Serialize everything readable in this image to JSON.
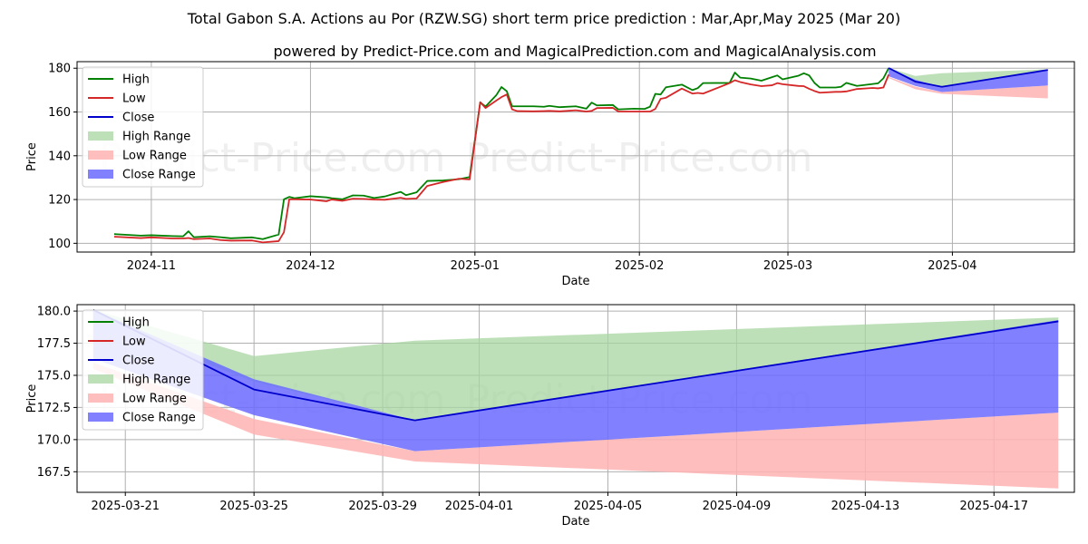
{
  "titles": {
    "main": "Total Gabon S.A. Actions au Por (RZW.SG) short term price prediction : Mar,Apr,May 2025 (Mar 20)",
    "sub": "powered by Predict-Price.com and MagicalPrediction.com and MagicalAnalysis.com"
  },
  "watermark": "Predict-Price.com",
  "colors": {
    "high": "#008000",
    "low": "#d62728",
    "close": "#0000cc",
    "high_range": "#a8d5a2",
    "low_range": "#ffb3b3",
    "close_range": "#6b6bff"
  },
  "legend": [
    "High",
    "Low",
    "Close",
    "High Range",
    "Low Range",
    "Close Range"
  ],
  "chart_data": [
    {
      "type": "line",
      "xlabel": "Date",
      "ylabel": "Price",
      "xlim": [
        "2024-10-18",
        "2025-04-24"
      ],
      "ylim": [
        96,
        183
      ],
      "yticks": [
        100,
        120,
        140,
        160,
        180
      ],
      "xticks": [
        "2024-11",
        "2024-12",
        "2025-01",
        "2025-02",
        "2025-03",
        "2025-04"
      ],
      "xtick_dates": [
        "2024-11-01",
        "2024-12-01",
        "2025-01-01",
        "2025-02-01",
        "2025-03-01",
        "2025-04-01"
      ],
      "grid": true,
      "legend_position": "upper-left",
      "series": [
        {
          "name": "High",
          "x": [
            "2024-10-25",
            "2024-10-30",
            "2024-11-01",
            "2024-11-05",
            "2024-11-07",
            "2024-11-08",
            "2024-11-09",
            "2024-11-12",
            "2024-11-14",
            "2024-11-16",
            "2024-11-20",
            "2024-11-22",
            "2024-11-25",
            "2024-11-26",
            "2024-11-27",
            "2024-11-28",
            "2024-12-01",
            "2024-12-04",
            "2024-12-05",
            "2024-12-07",
            "2024-12-09",
            "2024-12-11",
            "2024-12-13",
            "2024-12-15",
            "2024-12-18",
            "2024-12-19",
            "2024-12-21",
            "2024-12-23",
            "2024-12-26",
            "2024-12-29",
            "2024-12-31",
            "2025-01-02",
            "2025-01-03",
            "2025-01-05",
            "2025-01-06",
            "2025-01-07",
            "2025-01-08",
            "2025-01-09",
            "2025-01-12",
            "2025-01-14",
            "2025-01-15",
            "2025-01-17",
            "2025-01-20",
            "2025-01-22",
            "2025-01-23",
            "2025-01-24",
            "2025-01-27",
            "2025-01-28",
            "2025-01-31",
            "2025-02-02",
            "2025-02-03",
            "2025-02-04",
            "2025-02-05",
            "2025-02-06",
            "2025-02-09",
            "2025-02-11",
            "2025-02-12",
            "2025-02-13",
            "2025-02-18",
            "2025-02-19",
            "2025-02-20",
            "2025-02-22",
            "2025-02-24",
            "2025-02-26",
            "2025-02-27",
            "2025-02-28",
            "2025-03-03",
            "2025-03-04",
            "2025-03-05",
            "2025-03-06",
            "2025-03-07",
            "2025-03-10",
            "2025-03-11",
            "2025-03-12",
            "2025-03-14",
            "2025-03-17",
            "2025-03-18",
            "2025-03-19",
            "2025-03-20"
          ],
          "values": [
            104.2,
            103.5,
            103.7,
            103.3,
            103.2,
            105.5,
            102.8,
            103.2,
            102.8,
            102.3,
            102.7,
            101.9,
            104.0,
            120.1,
            121.2,
            120.6,
            121.5,
            121.0,
            120.6,
            120.1,
            121.9,
            121.8,
            120.7,
            121.4,
            123.5,
            122.0,
            123.3,
            128.5,
            128.7,
            129.3,
            130.3,
            164.4,
            162.5,
            167.6,
            171.4,
            169.5,
            162.6,
            162.6,
            162.6,
            162.4,
            162.8,
            162.2,
            162.6,
            161.5,
            164.3,
            163.0,
            163.2,
            161.2,
            161.5,
            161.4,
            162.4,
            168.3,
            168.0,
            171.3,
            172.5,
            170.0,
            170.9,
            173.2,
            173.3,
            178.0,
            175.7,
            175.3,
            174.3,
            175.9,
            176.7,
            174.9,
            176.6,
            177.7,
            176.7,
            173.3,
            171.2,
            171.2,
            171.5,
            173.3,
            171.9,
            172.8,
            173.1,
            175.4,
            180.1
          ]
        },
        {
          "name": "Low",
          "x": [
            "2024-10-25",
            "2024-10-30",
            "2024-11-01",
            "2024-11-05",
            "2024-11-07",
            "2024-11-08",
            "2024-11-09",
            "2024-11-12",
            "2024-11-14",
            "2024-11-16",
            "2024-11-20",
            "2024-11-22",
            "2024-11-25",
            "2024-11-26",
            "2024-11-27",
            "2024-11-28",
            "2024-12-01",
            "2024-12-04",
            "2024-12-05",
            "2024-12-07",
            "2024-12-09",
            "2024-12-11",
            "2024-12-13",
            "2024-12-15",
            "2024-12-18",
            "2024-12-19",
            "2024-12-21",
            "2024-12-23",
            "2024-12-26",
            "2024-12-29",
            "2024-12-31",
            "2025-01-02",
            "2025-01-03",
            "2025-01-05",
            "2025-01-06",
            "2025-01-07",
            "2025-01-08",
            "2025-01-09",
            "2025-01-12",
            "2025-01-14",
            "2025-01-15",
            "2025-01-17",
            "2025-01-20",
            "2025-01-22",
            "2025-01-23",
            "2025-01-24",
            "2025-01-27",
            "2025-01-28",
            "2025-01-31",
            "2025-02-02",
            "2025-02-03",
            "2025-02-04",
            "2025-02-05",
            "2025-02-06",
            "2025-02-09",
            "2025-02-11",
            "2025-02-12",
            "2025-02-13",
            "2025-02-18",
            "2025-02-19",
            "2025-02-20",
            "2025-02-22",
            "2025-02-24",
            "2025-02-26",
            "2025-02-27",
            "2025-02-28",
            "2025-03-03",
            "2025-03-04",
            "2025-03-05",
            "2025-03-06",
            "2025-03-07",
            "2025-03-10",
            "2025-03-11",
            "2025-03-12",
            "2025-03-14",
            "2025-03-17",
            "2025-03-18",
            "2025-03-19",
            "2025-03-20"
          ],
          "values": [
            103.0,
            102.4,
            102.7,
            102.2,
            102.2,
            102.4,
            101.9,
            102.2,
            101.5,
            101.2,
            101.3,
            100.4,
            101.0,
            105.1,
            120.1,
            120.1,
            120.0,
            119.2,
            120.0,
            119.4,
            120.4,
            120.3,
            120.0,
            119.9,
            120.8,
            120.3,
            120.5,
            126.2,
            128.0,
            129.5,
            129.2,
            164.5,
            161.8,
            165.2,
            166.8,
            168.0,
            161.2,
            160.4,
            160.3,
            160.4,
            160.5,
            160.3,
            160.8,
            160.2,
            160.5,
            161.8,
            161.9,
            160.2,
            160.2,
            160.2,
            160.2,
            161.4,
            166.0,
            166.5,
            170.7,
            168.4,
            168.7,
            168.4,
            173.2,
            174.5,
            173.7,
            172.6,
            171.8,
            172.2,
            173.2,
            172.7,
            171.9,
            171.8,
            170.6,
            169.6,
            168.8,
            169.2,
            169.2,
            169.4,
            170.5,
            171.0,
            170.8,
            171.2,
            177.1
          ]
        },
        {
          "name": "Close",
          "x": [
            "2025-03-20",
            "2025-03-25",
            "2025-03-30",
            "2025-04-19"
          ],
          "values": [
            180.1,
            173.9,
            171.5,
            179.2
          ]
        },
        {
          "name": "High Range",
          "x": [
            "2025-03-20",
            "2025-03-25",
            "2025-03-30",
            "2025-04-19"
          ],
          "upper": [
            180.1,
            176.5,
            177.7,
            179.5
          ],
          "lower": [
            179.3,
            174.5,
            171.5,
            179.2
          ]
        },
        {
          "name": "Low Range",
          "x": [
            "2025-03-20",
            "2025-03-25",
            "2025-03-30",
            "2025-04-19"
          ],
          "upper": [
            176.0,
            171.6,
            169.1,
            172.1
          ],
          "lower": [
            175.5,
            170.4,
            168.3,
            166.2
          ]
        },
        {
          "name": "Close Range",
          "x": [
            "2025-03-20",
            "2025-03-25",
            "2025-03-30",
            "2025-04-19"
          ],
          "upper": [
            180.1,
            174.7,
            171.5,
            179.3
          ],
          "lower": [
            176.3,
            171.9,
            169.1,
            172.1
          ]
        }
      ]
    },
    {
      "type": "line",
      "xlabel": "Date",
      "ylabel": "Price",
      "xlim": [
        "2025-03-19.5",
        "2025-04-19.5"
      ],
      "ylim": [
        165.9,
        180.5
      ],
      "yticks": [
        167.5,
        170.0,
        172.5,
        175.0,
        177.5,
        180.0
      ],
      "ytick_labels": [
        "167.5",
        "170.0",
        "172.5",
        "175.0",
        "177.5",
        "180.0"
      ],
      "xticks": [
        "2025-03-21",
        "2025-03-25",
        "2025-03-29",
        "2025-04-01",
        "2025-04-05",
        "2025-04-09",
        "2025-04-13",
        "2025-04-17"
      ],
      "grid": true,
      "legend_position": "upper-left",
      "series": [
        {
          "name": "High Range",
          "x": [
            "2025-03-20",
            "2025-03-25",
            "2025-03-30",
            "2025-04-19"
          ],
          "upper": [
            180.1,
            176.5,
            177.7,
            179.5
          ],
          "lower": [
            179.3,
            174.5,
            171.5,
            179.2
          ]
        },
        {
          "name": "Low Range",
          "x": [
            "2025-03-20",
            "2025-03-25",
            "2025-03-30",
            "2025-04-19"
          ],
          "upper": [
            176.0,
            171.6,
            169.1,
            172.1
          ],
          "lower": [
            175.5,
            170.4,
            168.3,
            166.2
          ]
        },
        {
          "name": "Close Range",
          "x": [
            "2025-03-20",
            "2025-03-25",
            "2025-03-30",
            "2025-04-19"
          ],
          "upper": [
            180.1,
            174.7,
            171.5,
            179.3
          ],
          "lower": [
            176.3,
            171.9,
            169.1,
            172.1
          ]
        },
        {
          "name": "Close",
          "x": [
            "2025-03-20",
            "2025-03-25",
            "2025-03-30",
            "2025-04-19"
          ],
          "values": [
            180.1,
            173.9,
            171.5,
            179.2
          ]
        }
      ]
    }
  ]
}
